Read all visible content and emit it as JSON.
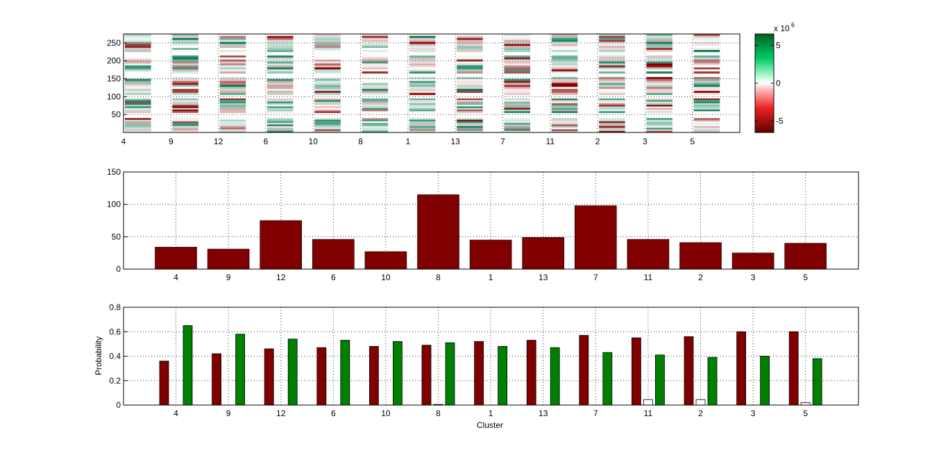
{
  "chart_data": [
    {
      "type": "heatmap",
      "description_label": "",
      "categories": [
        "4",
        "9",
        "12",
        "6",
        "10",
        "8",
        "1",
        "13",
        "7",
        "11",
        "2",
        "3",
        "5"
      ],
      "y_ticks": [
        50,
        100,
        150,
        200,
        250
      ],
      "ylim": [
        0,
        275
      ],
      "row_groups": [
        [
          0,
          40
        ],
        [
          55,
          95
        ],
        [
          105,
          155
        ],
        [
          165,
          215
        ],
        [
          225,
          275
        ]
      ],
      "colorbar": {
        "ticks": [
          -5,
          0,
          5
        ],
        "tick_labels": [
          "-5",
          "0",
          "5"
        ],
        "exponent_label": "x 10",
        "exponent": "6",
        "range": [
          -6.5,
          6.5
        ]
      },
      "colors": {
        "negative": "#cc0000",
        "neutral": "#ffffff",
        "positive": "#00a050"
      },
      "grid": true
    },
    {
      "type": "bar",
      "categories": [
        "4",
        "9",
        "12",
        "6",
        "10",
        "8",
        "1",
        "13",
        "7",
        "11",
        "2",
        "3",
        "5"
      ],
      "values": [
        34,
        31,
        75,
        46,
        27,
        115,
        45,
        49,
        98,
        46,
        41,
        25,
        40
      ],
      "y_ticks": [
        0,
        50,
        100,
        150
      ],
      "ylim": [
        0,
        150
      ],
      "color": "#800000",
      "grid": true
    },
    {
      "type": "bar",
      "categories": [
        "4",
        "9",
        "12",
        "6",
        "10",
        "8",
        "1",
        "13",
        "7",
        "11",
        "2",
        "3",
        "5"
      ],
      "xlabel": "Cluster",
      "ylabel": "Probability",
      "y_ticks": [
        0,
        0.2,
        0.4,
        0.6,
        0.8
      ],
      "y_tick_labels": [
        "0",
        "0.2",
        "0.4",
        "0.6",
        "0.8"
      ],
      "ylim": [
        0,
        0.8
      ],
      "series": [
        {
          "values": [
            0.36,
            0.42,
            0.46,
            0.47,
            0.48,
            0.49,
            0.52,
            0.53,
            0.57,
            0.55,
            0.56,
            0.6,
            0.6
          ],
          "color": "#800000"
        },
        {
          "values": [
            0.0,
            0.0,
            0.0,
            0.0,
            0.0,
            0.005,
            0.0,
            0.0,
            0.0,
            0.045,
            0.045,
            0.0,
            0.02
          ],
          "color": "#ffffff"
        },
        {
          "values": [
            0.65,
            0.58,
            0.54,
            0.53,
            0.52,
            0.51,
            0.48,
            0.47,
            0.43,
            0.41,
            0.39,
            0.4,
            0.38
          ],
          "color": "#008000"
        }
      ],
      "grid": true
    }
  ]
}
